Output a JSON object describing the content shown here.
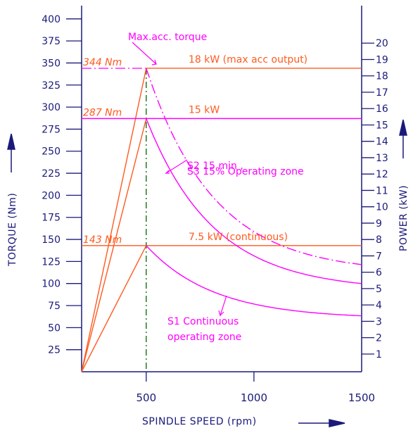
{
  "chart_data": {
    "type": "line",
    "xlabel": "SPINDLE SPEED (rpm)",
    "ylabel_left": "TORQUE (Nm)",
    "ylabel_right": "POWER (kW)",
    "xlim": [
      200,
      1500
    ],
    "ylim_left": [
      0,
      415
    ],
    "ylim_right": [
      0.5,
      21
    ],
    "x_ticks": [
      "500",
      "1000",
      "1500"
    ],
    "y_left_ticks": [
      "25",
      "50",
      "75",
      "100",
      "125",
      "150",
      "175",
      "200",
      "225",
      "250",
      "275",
      "300",
      "325",
      "350",
      "375",
      "400"
    ],
    "y_right_ticks": [
      "1",
      "2",
      "3",
      "4",
      "5",
      "6",
      "7",
      "8",
      "9",
      "10",
      "11",
      "12",
      "13",
      "14",
      "15",
      "16",
      "17",
      "18",
      "19",
      "20"
    ],
    "power_levels": [
      {
        "label": "18 kW (max acc output)",
        "kw": 18,
        "torque_label": "344 Nm",
        "torque": 344
      },
      {
        "label": "15 kW",
        "kw": 15,
        "torque_label": "287 Nm",
        "torque": 287
      },
      {
        "label": "7.5 kW (continuous)",
        "kw": 7.5,
        "torque_label": "143 Nm",
        "torque": 143
      }
    ],
    "base_speed": 500,
    "annotations": {
      "max_acc": "Max.acc. torque",
      "s2_line1": "S2 15 min ,",
      "s2_line2": "S3 15% Operating zone",
      "s1_line1": "S1 Continuous",
      "s1_line2": "operating zone"
    },
    "colors": {
      "axis": "#1a1a7a",
      "orange": "#ff5a1f",
      "magenta": "#ff00ff",
      "green": "#006400"
    }
  }
}
